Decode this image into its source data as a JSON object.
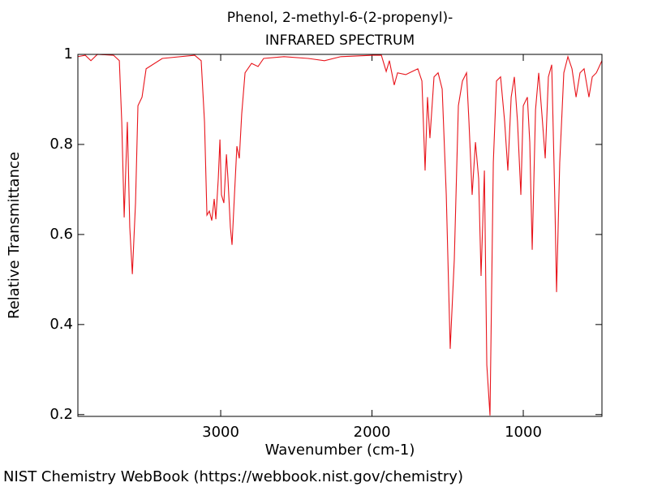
{
  "chart_data": {
    "type": "line",
    "title": "Phenol, 2-methyl-6-(2-propenyl)-",
    "subtitle": "INFRARED SPECTRUM",
    "x_label": "Wavenumber (cm-1)",
    "y_label": "Relative Transmittance",
    "credit": "NIST Chemistry WebBook (https://webbook.nist.gov/chemistry)",
    "color": "#e8141b",
    "xlim": [
      3944,
      480
    ],
    "ylim": [
      0.196,
      1
    ],
    "xticks": [
      3000,
      2000,
      1000
    ],
    "yticks": [
      0.2,
      0.4,
      0.6,
      0.8,
      1
    ],
    "x": [
      3944,
      3895,
      3858,
      3815,
      3708,
      3670,
      3654,
      3638,
      3617,
      3601,
      3584,
      3563,
      3547,
      3520,
      3493,
      3386,
      3172,
      3129,
      3107,
      3091,
      3075,
      3059,
      3043,
      3032,
      3016,
      3005,
      2995,
      2979,
      2962,
      2952,
      2936,
      2925,
      2909,
      2893,
      2877,
      2861,
      2839,
      2796,
      2753,
      2716,
      2582,
      2421,
      2314,
      2206,
      1992,
      1938,
      1906,
      1885,
      1853,
      1831,
      1777,
      1697,
      1670,
      1649,
      1633,
      1617,
      1590,
      1563,
      1536,
      1509,
      1483,
      1456,
      1429,
      1402,
      1375,
      1359,
      1338,
      1316,
      1295,
      1279,
      1257,
      1241,
      1220,
      1198,
      1177,
      1150,
      1123,
      1102,
      1080,
      1059,
      1038,
      1016,
      1000,
      973,
      957,
      941,
      919,
      898,
      877,
      855,
      834,
      812,
      791,
      780,
      759,
      732,
      705,
      678,
      651,
      625,
      598,
      566,
      544,
      517,
      480
    ],
    "values": [
      0.995,
      0.998,
      0.986,
      1.0,
      0.998,
      0.986,
      0.85,
      0.638,
      0.85,
      0.616,
      0.512,
      0.67,
      0.886,
      0.905,
      0.968,
      0.991,
      0.998,
      0.986,
      0.85,
      0.643,
      0.652,
      0.631,
      0.679,
      0.634,
      0.724,
      0.811,
      0.688,
      0.67,
      0.778,
      0.724,
      0.616,
      0.577,
      0.688,
      0.796,
      0.769,
      0.868,
      0.959,
      0.98,
      0.973,
      0.991,
      0.995,
      0.991,
      0.986,
      0.995,
      0.998,
      0.998,
      0.962,
      0.986,
      0.932,
      0.959,
      0.955,
      0.968,
      0.941,
      0.742,
      0.905,
      0.814,
      0.95,
      0.959,
      0.923,
      0.688,
      0.346,
      0.544,
      0.886,
      0.941,
      0.959,
      0.85,
      0.688,
      0.805,
      0.724,
      0.508,
      0.742,
      0.31,
      0.198,
      0.76,
      0.941,
      0.95,
      0.85,
      0.742,
      0.905,
      0.95,
      0.85,
      0.688,
      0.886,
      0.905,
      0.805,
      0.566,
      0.877,
      0.959,
      0.868,
      0.769,
      0.95,
      0.977,
      0.67,
      0.472,
      0.76,
      0.959,
      0.995,
      0.968,
      0.905,
      0.959,
      0.968,
      0.905,
      0.95,
      0.959,
      0.986
    ]
  }
}
